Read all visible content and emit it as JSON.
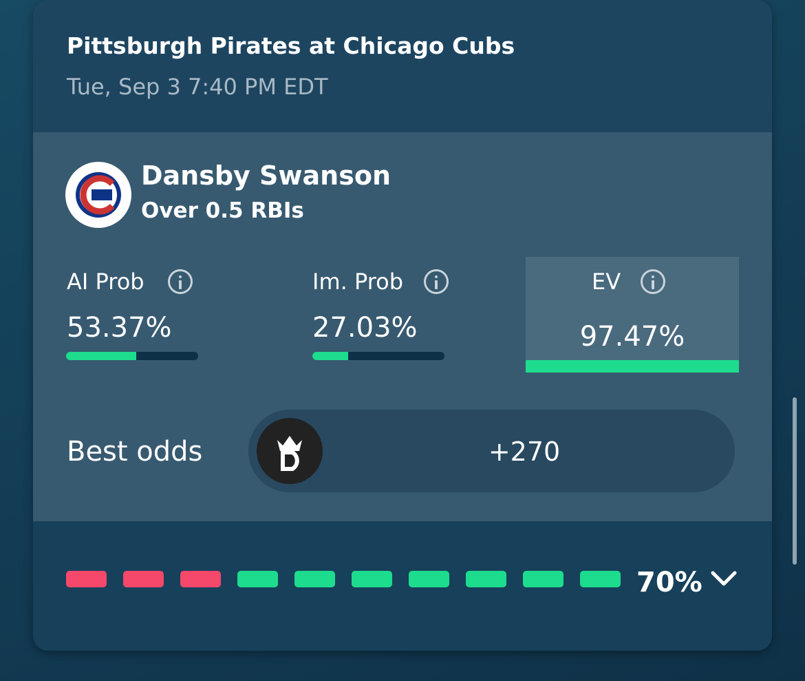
{
  "header": {
    "title": "Pittsburgh Pirates at Chicago Cubs",
    "subtitle": "Tue, Sep 3 7:40 PM EDT"
  },
  "player": {
    "name": "Dansby Swanson",
    "prop": "Over 0.5 RBIs"
  },
  "stats": [
    {
      "label": "AI Prob",
      "value": 53.37,
      "value_label": "53.37%"
    },
    {
      "label": "Im. Prob",
      "value": 27.03,
      "value_label": "27.03%"
    },
    {
      "label": "EV",
      "value": 97.47,
      "value_label": "97.47%"
    }
  ],
  "best_odds": {
    "label": "Best odds",
    "odds": "+270"
  },
  "hit_rate": {
    "value": 70,
    "label": "70%"
  }
}
